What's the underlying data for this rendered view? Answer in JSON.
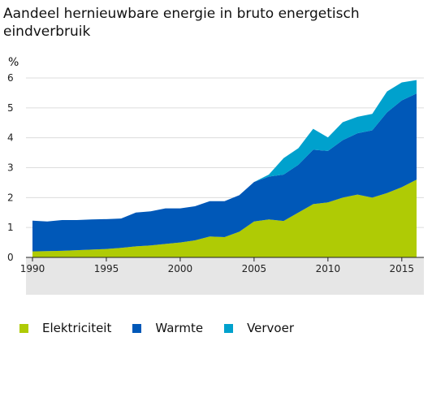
{
  "chart_data": {
    "type": "area",
    "stacked": true,
    "title": "Aandeel hernieuwbare energie in bruto energetisch eindverbruik",
    "title_lines": [
      "Aandeel hernieuwbare energie in bruto energetisch",
      "eindverbruik"
    ],
    "ylabel": "%",
    "xlabel": "",
    "xlim": [
      1990,
      2016
    ],
    "ylim": [
      0,
      6
    ],
    "x_ticks": [
      "1990",
      "1995",
      "2000",
      "2005",
      "2010",
      "2015"
    ],
    "y_ticks": [
      "0",
      "1",
      "2",
      "3",
      "4",
      "5",
      "6"
    ],
    "grid": true,
    "legend_position": "bottom",
    "x": [
      1990,
      1991,
      1992,
      1993,
      1994,
      1995,
      1996,
      1997,
      1998,
      1999,
      2000,
      2001,
      2002,
      2003,
      2004,
      2005,
      2006,
      2007,
      2008,
      2009,
      2010,
      2011,
      2012,
      2013,
      2014,
      2015,
      2016
    ],
    "series": [
      {
        "name": "Elektriciteit",
        "color": "#afcb05",
        "values": [
          0.2,
          0.21,
          0.22,
          0.24,
          0.26,
          0.28,
          0.32,
          0.37,
          0.4,
          0.45,
          0.5,
          0.57,
          0.7,
          0.68,
          0.86,
          1.2,
          1.27,
          1.22,
          1.5,
          1.78,
          1.84,
          2.0,
          2.1,
          2.0,
          2.15,
          2.35,
          2.6
        ]
      },
      {
        "name": "Warmte",
        "color": "#0058b8",
        "values": [
          1.03,
          0.99,
          1.03,
          1.01,
          1.01,
          1.0,
          0.98,
          1.13,
          1.14,
          1.19,
          1.14,
          1.14,
          1.18,
          1.2,
          1.22,
          1.32,
          1.43,
          1.55,
          1.6,
          1.82,
          1.72,
          1.92,
          2.05,
          2.25,
          2.7,
          2.9,
          2.88
        ]
      },
      {
        "name": "Vervoer",
        "color": "#00a1cd",
        "values": [
          0,
          0,
          0,
          0,
          0,
          0,
          0,
          0,
          0,
          0,
          0,
          0,
          0,
          0,
          0,
          0,
          0.07,
          0.55,
          0.55,
          0.7,
          0.45,
          0.6,
          0.55,
          0.55,
          0.7,
          0.6,
          0.45
        ]
      }
    ]
  }
}
